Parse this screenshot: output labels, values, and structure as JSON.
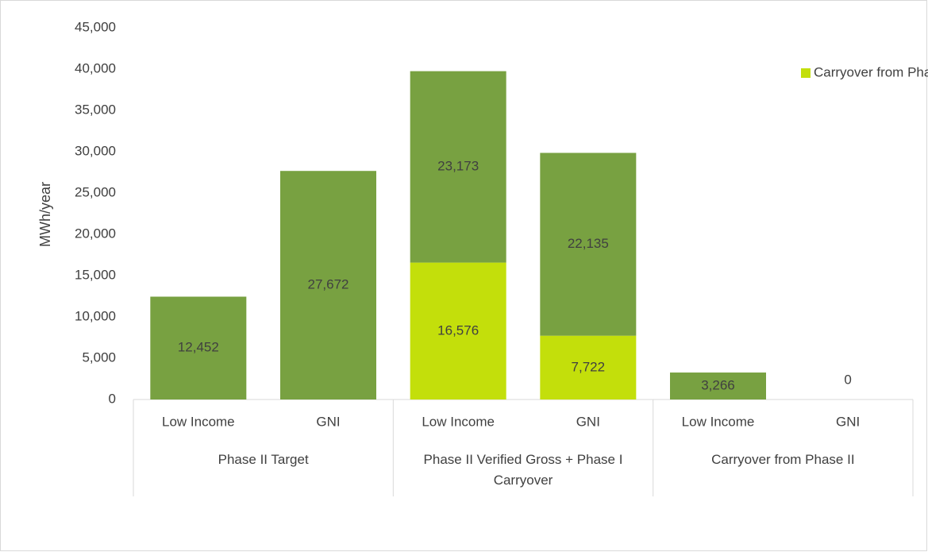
{
  "chart_data": {
    "type": "stacked_bar",
    "ylabel": "MWh/year",
    "groups": [
      {
        "name": "Phase II Target",
        "categories": [
          "Low Income",
          "GNI"
        ]
      },
      {
        "name": "Phase II Verified Gross + Phase I Carryover",
        "categories": [
          "Low Income",
          "GNI"
        ]
      },
      {
        "name": "Carryover from Phase II",
        "categories": [
          "Low Income",
          "GNI"
        ]
      }
    ],
    "series": [
      {
        "name": "Carryover from Phase I",
        "color": "#c3df0b",
        "values": [
          null,
          null,
          16576,
          7722,
          null,
          null
        ],
        "value_labels": [
          null,
          null,
          "16,576",
          "7,722",
          null,
          null
        ]
      },
      {
        "color": "#78a141",
        "values": [
          12452,
          27672,
          23173,
          22135,
          3266,
          0
        ],
        "value_labels": [
          "12,452",
          "27,672",
          "23,173",
          "22,135",
          "3,266",
          "0"
        ]
      }
    ],
    "ylim": [
      0,
      45000
    ],
    "yticks": [
      0,
      {
        "value": 5000,
        "label": "5,000"
      },
      {
        "value": 10000,
        "label": "10,000"
      },
      {
        "value": 15000,
        "label": "15,000"
      },
      {
        "value": 20000,
        "label": "20,000"
      },
      {
        "value": 25000,
        "label": "25,000"
      },
      {
        "value": 30000,
        "label": "30,000"
      },
      {
        "value": 35000,
        "label": "35,000"
      },
      {
        "value": 40000,
        "label": "40,000"
      },
      {
        "value": 45000,
        "label": "45,000"
      }
    ],
    "grid": false,
    "legend": "top-right"
  }
}
